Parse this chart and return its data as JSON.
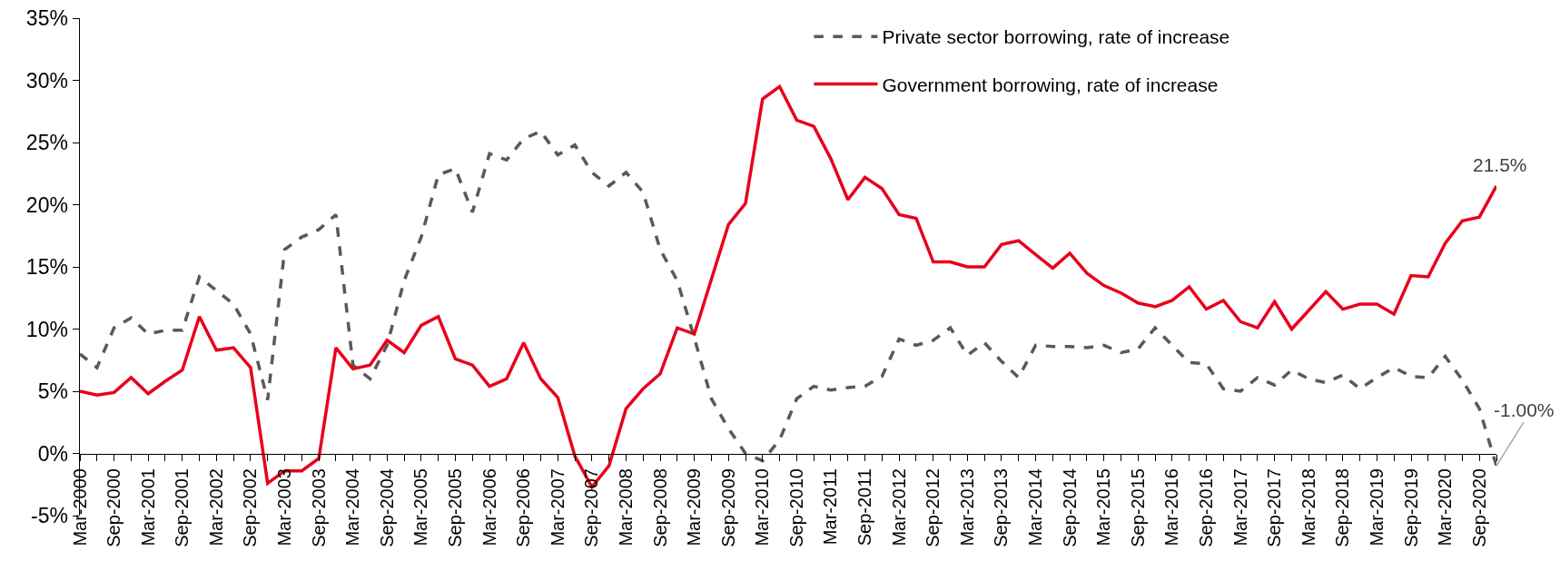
{
  "chart_data": {
    "type": "line",
    "categories": [
      "Mar-2000",
      null,
      "Sep-2000",
      null,
      "Mar-2001",
      null,
      "Sep-2001",
      null,
      "Mar-2002",
      null,
      "Sep-2002",
      null,
      "Mar-2003",
      null,
      "Sep-2003",
      null,
      "Mar-2004",
      null,
      "Sep-2004",
      null,
      "Mar-2005",
      null,
      "Sep-2005",
      null,
      "Mar-2006",
      null,
      "Sep-2006",
      null,
      "Mar-2007",
      null,
      "Sep-2007",
      null,
      "Mar-2008",
      null,
      "Sep-2008",
      null,
      "Mar-2009",
      null,
      "Sep-2009",
      null,
      "Mar-2010",
      null,
      "Sep-2010",
      null,
      "Mar-2011",
      null,
      "Sep-2011",
      null,
      "Mar-2012",
      null,
      "Sep-2012",
      null,
      "Mar-2013",
      null,
      "Sep-2013",
      null,
      "Mar-2014",
      null,
      "Sep-2014",
      null,
      "Mar-2015",
      null,
      "Sep-2015",
      null,
      "Mar-2016",
      null,
      "Sep-2016",
      null,
      "Mar-2017",
      null,
      "Sep-2017",
      null,
      "Mar-2018",
      null,
      "Sep-2018",
      null,
      "Mar-2019",
      null,
      "Sep-2019",
      null,
      "Mar-2020",
      null,
      "Sep-2020",
      null
    ],
    "series": [
      {
        "name": "Private sector borrowing, rate of increase",
        "color": "#595959",
        "line_style": "dashed",
        "values": [
          8.0,
          6.9,
          10.1,
          10.9,
          9.6,
          9.9,
          9.9,
          14.2,
          13.1,
          12.0,
          9.6,
          4.3,
          16.4,
          17.4,
          18.0,
          19.2,
          7.1,
          6.0,
          8.7,
          13.9,
          17.4,
          22.4,
          22.9,
          19.4,
          24.1,
          23.6,
          25.3,
          25.9,
          24.0,
          24.8,
          22.6,
          21.5,
          22.6,
          21.0,
          16.4,
          13.9,
          9.3,
          4.4,
          2.0,
          0.0,
          -0.6,
          1.1,
          4.4,
          5.4,
          5.1,
          5.3,
          5.4,
          6.2,
          9.2,
          8.7,
          9.1,
          10.1,
          7.9,
          8.9,
          7.4,
          6.1,
          8.7,
          8.6,
          8.6,
          8.5,
          8.7,
          8.1,
          8.4,
          10.1,
          8.7,
          7.3,
          7.2,
          5.2,
          5.0,
          6.1,
          5.5,
          6.7,
          6.0,
          5.7,
          6.3,
          5.2,
          6.1,
          6.9,
          6.2,
          6.1,
          7.8,
          5.9,
          3.6,
          -1.0
        ],
        "value_labels": [
          null,
          null,
          null,
          null,
          null,
          null,
          null,
          null,
          null,
          null,
          null,
          null,
          null,
          null,
          null,
          null,
          null,
          null,
          null,
          null,
          null,
          null,
          null,
          null,
          null,
          null,
          null,
          null,
          null,
          null,
          null,
          null,
          null,
          null,
          null,
          null,
          null,
          null,
          null,
          null,
          null,
          null,
          null,
          null,
          null,
          null,
          null,
          null,
          null,
          null,
          null,
          null,
          null,
          null,
          null,
          null,
          null,
          null,
          null,
          null,
          null,
          null,
          null,
          null,
          null,
          null,
          null,
          null,
          null,
          null,
          null,
          null,
          null,
          null,
          null,
          null,
          null,
          null,
          null,
          null,
          null,
          null,
          null,
          "-1.00%"
        ]
      },
      {
        "name": "Government borrowing, rate of increase",
        "color": "#e8001c",
        "line_style": "solid",
        "values": [
          5.0,
          4.7,
          4.9,
          6.1,
          4.8,
          5.8,
          6.7,
          11.0,
          8.3,
          8.5,
          6.9,
          -2.4,
          -1.4,
          -1.4,
          -0.4,
          8.5,
          6.8,
          7.1,
          9.1,
          8.1,
          10.3,
          11.0,
          7.6,
          7.1,
          5.4,
          6.0,
          8.9,
          6.0,
          4.5,
          -0.2,
          -2.7,
          -1.0,
          3.6,
          5.2,
          6.4,
          10.1,
          9.6,
          14.0,
          18.4,
          20.1,
          28.5,
          29.5,
          26.8,
          26.3,
          23.7,
          20.4,
          22.2,
          21.3,
          19.2,
          18.9,
          15.4,
          15.4,
          15.0,
          15.0,
          16.8,
          17.1,
          16.0,
          14.9,
          16.1,
          14.5,
          13.5,
          12.9,
          12.1,
          11.8,
          12.3,
          13.4,
          11.6,
          12.3,
          10.6,
          10.1,
          12.2,
          10.0,
          11.5,
          13.0,
          11.6,
          12.0,
          12.0,
          11.2,
          14.3,
          14.2,
          16.9,
          18.7,
          19.0,
          21.5
        ],
        "value_labels": [
          null,
          null,
          null,
          null,
          null,
          null,
          null,
          null,
          null,
          null,
          null,
          null,
          null,
          null,
          null,
          null,
          null,
          null,
          null,
          null,
          null,
          null,
          null,
          null,
          null,
          null,
          null,
          null,
          null,
          null,
          null,
          null,
          null,
          null,
          null,
          null,
          null,
          null,
          null,
          null,
          null,
          null,
          null,
          null,
          null,
          null,
          null,
          null,
          null,
          null,
          null,
          null,
          null,
          null,
          null,
          null,
          null,
          null,
          null,
          null,
          null,
          null,
          null,
          null,
          null,
          null,
          null,
          null,
          null,
          null,
          null,
          null,
          null,
          null,
          null,
          null,
          null,
          null,
          null,
          null,
          null,
          null,
          null,
          "21.5%"
        ]
      }
    ],
    "ylim": [
      -5,
      35
    ],
    "yticks": [
      {
        "value": -5,
        "label": "-5%"
      },
      {
        "value": 0,
        "label": "0%"
      },
      {
        "value": 5,
        "label": "5%"
      },
      {
        "value": 10,
        "label": "10%"
      },
      {
        "value": 15,
        "label": "15%"
      },
      {
        "value": 20,
        "label": "20%"
      },
      {
        "value": 25,
        "label": "25%"
      },
      {
        "value": 30,
        "label": "30%"
      },
      {
        "value": 35,
        "label": "35%"
      }
    ],
    "grid": false,
    "legend": "top right",
    "marker": "none"
  }
}
